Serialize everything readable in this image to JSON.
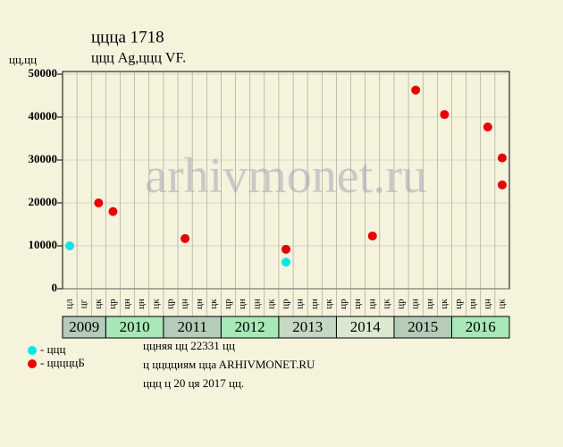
{
  "chart_data": {
    "type": "scatter",
    "title": "ццца 1718",
    "subtitle": "ццц Ag,ццц VF.",
    "y_label": "цц,цц",
    "watermark": "arhivmonet.ru",
    "groups": [
      {
        "label": "2009",
        "color": "#b4ccb8",
        "categories": [
          "цл",
          "цг",
          "цк"
        ]
      },
      {
        "label": "2010",
        "color": "#a8e8b8",
        "categories": [
          "цр",
          "цн",
          "цн",
          "цк"
        ]
      },
      {
        "label": "2011",
        "color": "#b4ccb8",
        "categories": [
          "цр",
          "цн",
          "цн",
          "цк"
        ]
      },
      {
        "label": "2012",
        "color": "#a8e8b8",
        "categories": [
          "цр",
          "цн",
          "цн",
          "цк"
        ]
      },
      {
        "label": "2013",
        "color": "#c4d8c4",
        "categories": [
          "цр",
          "цн",
          "цн",
          "цк"
        ]
      },
      {
        "label": "2014",
        "color": "#dce8d0",
        "categories": [
          "цр",
          "цн",
          "цн",
          "цк"
        ]
      },
      {
        "label": "2015",
        "color": "#b4ccb8",
        "categories": [
          "цр",
          "цн",
          "цн",
          "цк"
        ]
      },
      {
        "label": "2016",
        "color": "#a8e8b8",
        "categories": [
          "цр",
          "цн",
          "цн",
          "цк"
        ]
      }
    ],
    "series": [
      {
        "name": "- ццц",
        "color": "#00e8e8",
        "values": [
          10000,
          null,
          null,
          null,
          null,
          null,
          null,
          null,
          null,
          null,
          null,
          null,
          null,
          null,
          null,
          6200,
          null,
          null,
          null,
          null,
          null,
          null,
          null,
          null,
          null,
          null,
          null,
          null,
          null,
          null,
          null
        ]
      },
      {
        "name": "- цццццБ",
        "color": "#e80000",
        "values": [
          null,
          null,
          20000,
          18000,
          null,
          null,
          null,
          null,
          11700,
          null,
          null,
          null,
          null,
          null,
          null,
          9200,
          null,
          null,
          null,
          null,
          null,
          12300,
          null,
          null,
          46300,
          null,
          40600,
          null,
          null,
          37700,
          [
            24200,
            30500
          ]
        ]
      }
    ],
    "ylim": [
      0,
      50000
    ],
    "yticks": [
      0,
      10000,
      20000,
      30000,
      40000,
      50000
    ],
    "grid": true,
    "notes": [
      "ццняя цц 22331 цц",
      "ц цццциям ццa ARHIVMONET.RU",
      "ццц ц 20 ця 2017 цц."
    ]
  }
}
